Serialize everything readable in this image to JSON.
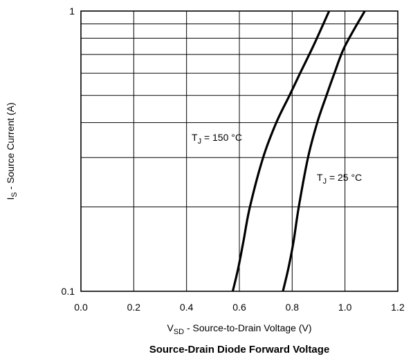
{
  "chart_data": {
    "type": "line",
    "title": "Source-Drain Diode Forward Voltage",
    "xlabel": {
      "main": "V",
      "sub": "SD",
      "rest": " - Source-to-Drain Voltage (V)"
    },
    "ylabel": {
      "main": "I",
      "sub": "S",
      "rest": " - Source Current (A)"
    },
    "xlim": [
      0.0,
      1.2
    ],
    "ylim": [
      0.1,
      1
    ],
    "yscale": "log",
    "grid": true,
    "xticks": [
      "0.0",
      "0.2",
      "0.4",
      "0.6",
      "0.8",
      "1.0",
      "1.2"
    ],
    "yticks": [
      "0.1",
      "1"
    ],
    "colors": {
      "line": "#000000",
      "grid": "#000000"
    },
    "series": [
      {
        "label": {
          "main": "T",
          "sub": "J",
          "rest": " = 150 °C"
        },
        "points": [
          [
            0.575,
            0.1
          ],
          [
            0.595,
            0.12
          ],
          [
            0.615,
            0.15
          ],
          [
            0.64,
            0.2
          ],
          [
            0.69,
            0.3
          ],
          [
            0.74,
            0.4
          ],
          [
            0.79,
            0.5
          ],
          [
            0.83,
            0.6
          ],
          [
            0.88,
            0.75
          ],
          [
            0.94,
            1.0
          ]
        ]
      },
      {
        "label": {
          "main": "T",
          "sub": "J",
          "rest": " = 25 °C"
        },
        "points": [
          [
            0.765,
            0.1
          ],
          [
            0.785,
            0.12
          ],
          [
            0.805,
            0.15
          ],
          [
            0.825,
            0.2
          ],
          [
            0.86,
            0.3
          ],
          [
            0.895,
            0.4
          ],
          [
            0.93,
            0.5
          ],
          [
            0.96,
            0.6
          ],
          [
            1.0,
            0.75
          ],
          [
            1.075,
            1.0
          ]
        ]
      }
    ]
  }
}
